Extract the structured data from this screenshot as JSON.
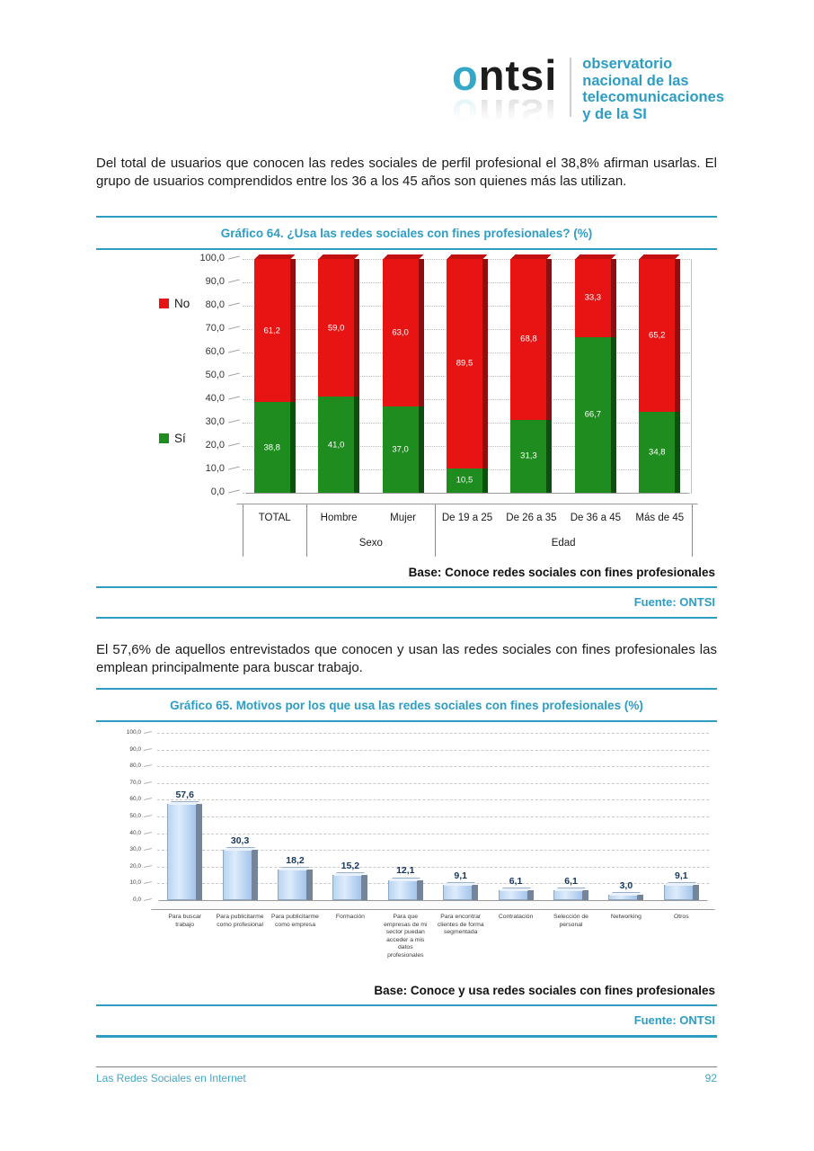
{
  "colors": {
    "accent": "#2e9dc3",
    "no_red": "#e81414",
    "no_red_side": "#8f0f0f",
    "no_red_cap": "#c01010",
    "si_green": "#1f8c1f",
    "si_green_side": "#0d4f0d",
    "si_green_cap": "#187018",
    "value_navy": "#17375e"
  },
  "logo": {
    "brand_o": "o",
    "brand_rest": "ntsi",
    "tagline": [
      "observatorio",
      "nacional de las",
      "telecomunicaciones",
      "y de la SI"
    ]
  },
  "paragraphs": {
    "p1": "Del total de usuarios que conocen las redes sociales de perfil profesional el 38,8% afirman usarlas. El grupo de usuarios comprendidos entre los 36 a los 45 años son quienes más las utilizan.",
    "p2": "El 57,6% de aquellos entrevistados que conocen y usan las redes sociales con fines profesionales las emplean principalmente para buscar trabajo."
  },
  "chart_data": [
    {
      "type": "bar",
      "stacked": true,
      "title": "Gráfico 64. ¿Usa las redes sociales con fines profesionales? (%)",
      "categories": [
        "TOTAL",
        "Hombre",
        "Mujer",
        "De 19 a 25",
        "De 26 a 35",
        "De 36 a 45",
        "Más de 45"
      ],
      "category_groups": [
        {
          "label": "",
          "span": 1
        },
        {
          "label": "Sexo",
          "span": 2
        },
        {
          "label": "Edad",
          "span": 4
        }
      ],
      "series": [
        {
          "name": "No",
          "values": [
            61.2,
            59.0,
            63.0,
            89.5,
            68.8,
            33.3,
            65.2
          ],
          "labels": [
            "61,2",
            "59,0",
            "63,0",
            "89,5",
            "68,8",
            "33,3",
            "65,2"
          ]
        },
        {
          "name": "Sí",
          "values": [
            38.8,
            41.0,
            37.0,
            10.5,
            31.3,
            66.7,
            34.8
          ],
          "labels": [
            "38,8",
            "41,0",
            "37,0",
            "10,5",
            "31,3",
            "66,7",
            "34,8"
          ]
        }
      ],
      "ylim": [
        0,
        100
      ],
      "ytick_step": 10,
      "grid": true,
      "legend_position": "left",
      "base_note": "Base: Conoce redes sociales con fines profesionales",
      "source": "Fuente: ONTSI"
    },
    {
      "type": "bar",
      "stacked": false,
      "title": "Gráfico 65. Motivos por los que usa las redes sociales con fines profesionales (%)",
      "categories": [
        "Para buscar trabajo",
        "Para publicitarme como profesional",
        "Para publicitarme como empresa",
        "Formación",
        "Para que empresas de mi sector puedan acceder a mis datos profesionales",
        "Para encontrar clientes de forma segmentada",
        "Contratación",
        "Selección de personal",
        "Networking",
        "Otros"
      ],
      "values": [
        57.6,
        30.3,
        18.2,
        15.2,
        12.1,
        9.1,
        6.1,
        6.1,
        3.0,
        9.1
      ],
      "labels": [
        "57,6",
        "30,3",
        "18,2",
        "15,2",
        "12,1",
        "9,1",
        "6,1",
        "6,1",
        "3,0",
        "9,1"
      ],
      "ylim": [
        0,
        100
      ],
      "ytick_step": 10,
      "grid": true,
      "base_note": "Base: Conoce y usa redes sociales con fines profesionales",
      "source": "Fuente: ONTSI"
    }
  ],
  "footer": {
    "left": "Las Redes Sociales en Internet",
    "page_number": "92"
  }
}
